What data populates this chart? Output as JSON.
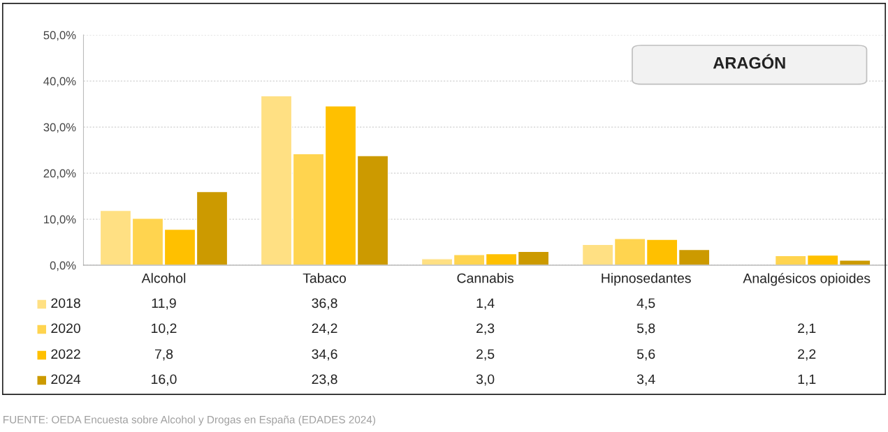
{
  "chart_data": {
    "type": "bar",
    "title": "ARAGÓN",
    "categories": [
      "Alcohol",
      "Tabaco",
      "Cannabis",
      "Hipnosedantes",
      "Analgésicos opioides"
    ],
    "series": [
      {
        "name": "2018",
        "color": "#ffe083",
        "values": [
          11.9,
          36.8,
          1.4,
          4.5,
          null
        ],
        "value_labels": [
          "11,9",
          "36,8",
          "1,4",
          "4,5",
          null
        ]
      },
      {
        "name": "2020",
        "color": "#ffd44f",
        "values": [
          10.2,
          24.2,
          2.3,
          5.8,
          2.1
        ],
        "value_labels": [
          "10,2",
          "24,2",
          "2,3",
          "5,8",
          "2,1"
        ]
      },
      {
        "name": "2022",
        "color": "#ffc000",
        "values": [
          7.8,
          34.6,
          2.5,
          5.6,
          2.2
        ],
        "value_labels": [
          "7,8",
          "34,6",
          "2,5",
          "5,6",
          "2,2"
        ]
      },
      {
        "name": "2024",
        "color": "#cc9a00",
        "values": [
          16.0,
          23.8,
          3.0,
          3.4,
          1.1
        ],
        "value_labels": [
          "16,0",
          "23,8",
          "3,0",
          "3,4",
          "1,1"
        ]
      }
    ],
    "ylim": [
      0,
      50
    ],
    "yticks": [
      {
        "value": 0,
        "label": "0,0%"
      },
      {
        "value": 10,
        "label": "10,0%"
      },
      {
        "value": 20,
        "label": "20,0%"
      },
      {
        "value": 30,
        "label": "30,0%"
      },
      {
        "value": 40,
        "label": "40,0%"
      },
      {
        "value": 50,
        "label": "50,0%"
      }
    ],
    "grid": "y",
    "legend": "bottom",
    "annotations": [
      "FUENTE: OEDA Encuesta sobre Alcohol y Drogas en España (EDADES 2024)"
    ]
  }
}
